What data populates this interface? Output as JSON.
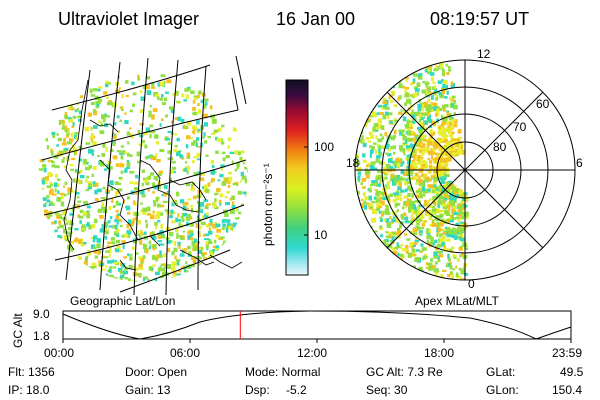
{
  "header": {
    "title": "Ultraviolet Imager",
    "date": "16 Jan 00",
    "time": "08:19:57 UT"
  },
  "colorbar": {
    "unit": "photon cm⁻²s⁻¹",
    "ticks": [
      "100",
      "10"
    ]
  },
  "left_panel": {
    "label": "Geographic Lat/Lon"
  },
  "right_panel": {
    "label": "Apex MLat/MLT",
    "mlt_labels": {
      "top": "12",
      "right": "6",
      "bottom": "0",
      "left": "18"
    },
    "lat_labels": [
      "60",
      "70",
      "80"
    ]
  },
  "altitude_plot": {
    "ylabel": "GC Alt",
    "yticks": [
      "9.0",
      "1.8"
    ],
    "xticks": [
      "00:00",
      "06:00",
      "12:00",
      "18:00",
      "23:59"
    ],
    "marker_time_fraction": 0.349
  },
  "info": {
    "flt": "Flt: 1356",
    "ip": "IP: 18.0",
    "door": "Door: Open",
    "gain": "Gain: 13",
    "mode": "Mode: Normal",
    "dsp_label": "Dsp:",
    "dsp_value": "-5.2",
    "gc_alt": "GC Alt: 7.3 Re",
    "seq": "Seq: 30",
    "glat_label": "GLat:",
    "glat_value": "49.5",
    "glon_label": "GLon:",
    "glon_value": "150.4"
  },
  "colors": {
    "aurora_low": "#8fe040",
    "aurora_mid": "#e6f030",
    "aurora_high": "#f5c020",
    "cyan": "#30d8c0",
    "marker": "#ff0000"
  }
}
